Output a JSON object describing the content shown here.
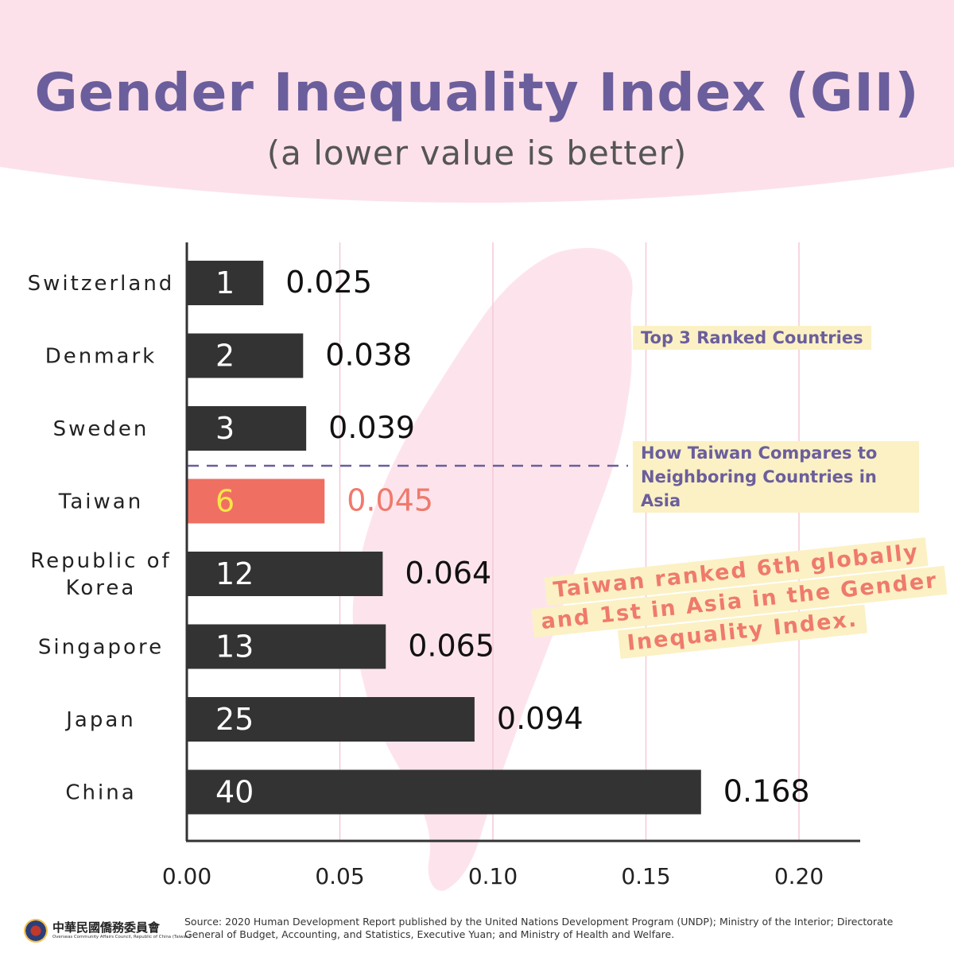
{
  "chart_data": {
    "type": "bar",
    "orientation": "horizontal",
    "title": "Gender Inequality Index (GII)",
    "subtitle": "(a lower value is better)",
    "categories": [
      "Switzerland",
      "Denmark",
      "Sweden",
      "Taiwan",
      "Republic of Korea",
      "Singapore",
      "Japan",
      "China"
    ],
    "category_lines": [
      [
        "Switzerland"
      ],
      [
        "Denmark"
      ],
      [
        "Sweden"
      ],
      [
        "Taiwan"
      ],
      [
        "Republic of",
        "Korea"
      ],
      [
        "Singapore"
      ],
      [
        "Japan"
      ],
      [
        "China"
      ]
    ],
    "values": [
      0.025,
      0.038,
      0.039,
      0.045,
      0.064,
      0.065,
      0.094,
      0.168
    ],
    "value_labels": [
      "0.025",
      "0.038",
      "0.039",
      "0.045",
      "0.064",
      "0.065",
      "0.094",
      "0.168"
    ],
    "ranks": [
      "1",
      "2",
      "3",
      "6",
      "12",
      "13",
      "25",
      "40"
    ],
    "highlight": "Taiwan",
    "xlim": [
      0,
      0.22
    ],
    "xticks": [
      0,
      0.05,
      0.1,
      0.15,
      0.2
    ],
    "xtick_labels": [
      "0.00",
      "0.05",
      "0.10",
      "0.15",
      "0.20"
    ],
    "grid": true,
    "colors": {
      "bar": "#333333",
      "highlight_bar": "#ef6f63",
      "highlight_rank": "#f6e54a",
      "highlight_value": "#ef7a6c",
      "gridline": "#f3c9d6",
      "header_bg": "#fde1ea",
      "title": "#6b5e9c",
      "divider": "#6b5e9c",
      "map_silhouette": "#fde4ec"
    }
  },
  "annotations": {
    "top3_label": "Top 3 Ranked Countries",
    "compare_label": "How Taiwan Compares to Neighboring Countries in Asia",
    "callout_lines": [
      "Taiwan ranked 6th globally",
      "and 1st in Asia in the Gender",
      "Inequality Index."
    ]
  },
  "footer": {
    "logo_name": "中華民國僑務委員會",
    "logo_subtitle": "Overseas Community Affairs Council, Republic of China (Taiwan)",
    "source": "Source: 2020 Human Development Report published by the United Nations Development Program (UNDP); Ministry of the Interior; Directorate General of Budget, Accounting, and Statistics, Executive Yuan; and Ministry of Health and Welfare."
  }
}
